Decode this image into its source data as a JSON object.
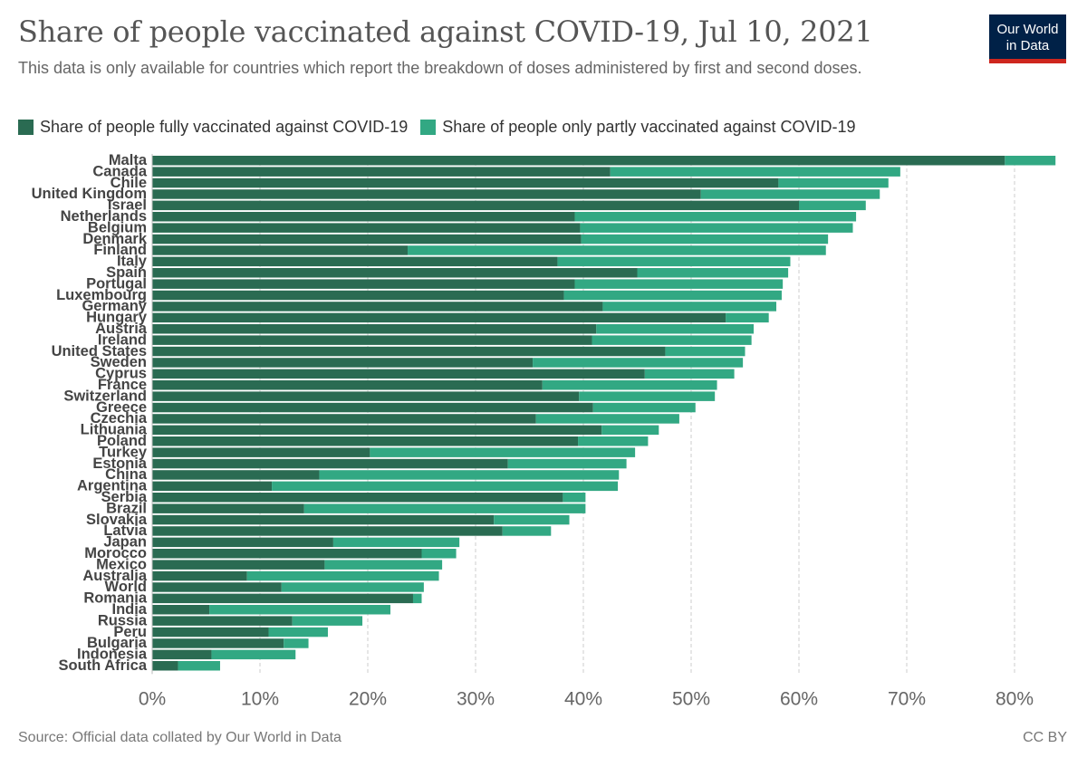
{
  "title": "Share of people vaccinated against COVID-19, Jul 10, 2021",
  "subtitle": "This data is only available for countries which report the breakdown of doses administered by first and second doses.",
  "logo": {
    "line1": "Our World",
    "line2": "in Data"
  },
  "source": "Source: Official data collated by Our World in Data",
  "license": "CC BY",
  "colors": {
    "fully": "#2a6b52",
    "partly": "#32a883",
    "grid": "#cccccc",
    "text": "#333333"
  },
  "chart_data": {
    "type": "bar",
    "orientation": "horizontal",
    "stacked": true,
    "title": "Share of people vaccinated against COVID-19, Jul 10, 2021",
    "x_ticks": [
      "0%",
      "10%",
      "20%",
      "30%",
      "40%",
      "50%",
      "60%",
      "70%",
      "80%"
    ],
    "xlim": [
      0,
      84
    ],
    "grid": true,
    "legend_position": "top",
    "categories": [
      "Malta",
      "Canada",
      "Chile",
      "United Kingdom",
      "Israel",
      "Netherlands",
      "Belgium",
      "Denmark",
      "Finland",
      "Italy",
      "Spain",
      "Portugal",
      "Luxembourg",
      "Germany",
      "Hungary",
      "Austria",
      "Ireland",
      "United States",
      "Sweden",
      "Cyprus",
      "France",
      "Switzerland",
      "Greece",
      "Czechia",
      "Lithuania",
      "Poland",
      "Turkey",
      "Estonia",
      "China",
      "Argentina",
      "Serbia",
      "Brazil",
      "Slovakia",
      "Latvia",
      "Japan",
      "Morocco",
      "Mexico",
      "Australia",
      "World",
      "Romania",
      "India",
      "Russia",
      "Peru",
      "Bulgaria",
      "Indonesia",
      "South Africa"
    ],
    "series": [
      {
        "name": "Share of people fully vaccinated against COVID-19",
        "color": "#2a6b52",
        "values": [
          79.1,
          42.5,
          58.1,
          50.9,
          60.0,
          39.2,
          39.7,
          39.8,
          23.7,
          37.6,
          45.0,
          39.2,
          38.2,
          41.8,
          53.2,
          41.2,
          40.8,
          47.6,
          35.3,
          45.7,
          36.2,
          39.6,
          40.9,
          35.6,
          41.7,
          39.5,
          20.2,
          33.0,
          15.5,
          11.1,
          38.1,
          14.1,
          31.7,
          32.5,
          16.8,
          25.0,
          16.0,
          8.8,
          12.0,
          24.2,
          5.3,
          13.0,
          10.8,
          12.2,
          5.5,
          2.4
        ]
      },
      {
        "name": "Share of people only partly vaccinated against COVID-19",
        "color": "#32a883",
        "values": [
          4.7,
          26.9,
          10.2,
          16.6,
          6.2,
          26.1,
          25.3,
          22.9,
          38.8,
          21.6,
          14.0,
          19.3,
          20.2,
          16.1,
          4.0,
          14.6,
          14.8,
          7.4,
          19.5,
          8.3,
          16.2,
          12.6,
          9.5,
          13.3,
          5.3,
          6.5,
          24.6,
          11.0,
          27.8,
          32.1,
          2.1,
          26.1,
          7.0,
          4.5,
          11.7,
          3.2,
          10.9,
          17.8,
          13.2,
          0.8,
          16.8,
          6.5,
          5.5,
          2.3,
          7.8,
          3.9
        ]
      }
    ]
  }
}
